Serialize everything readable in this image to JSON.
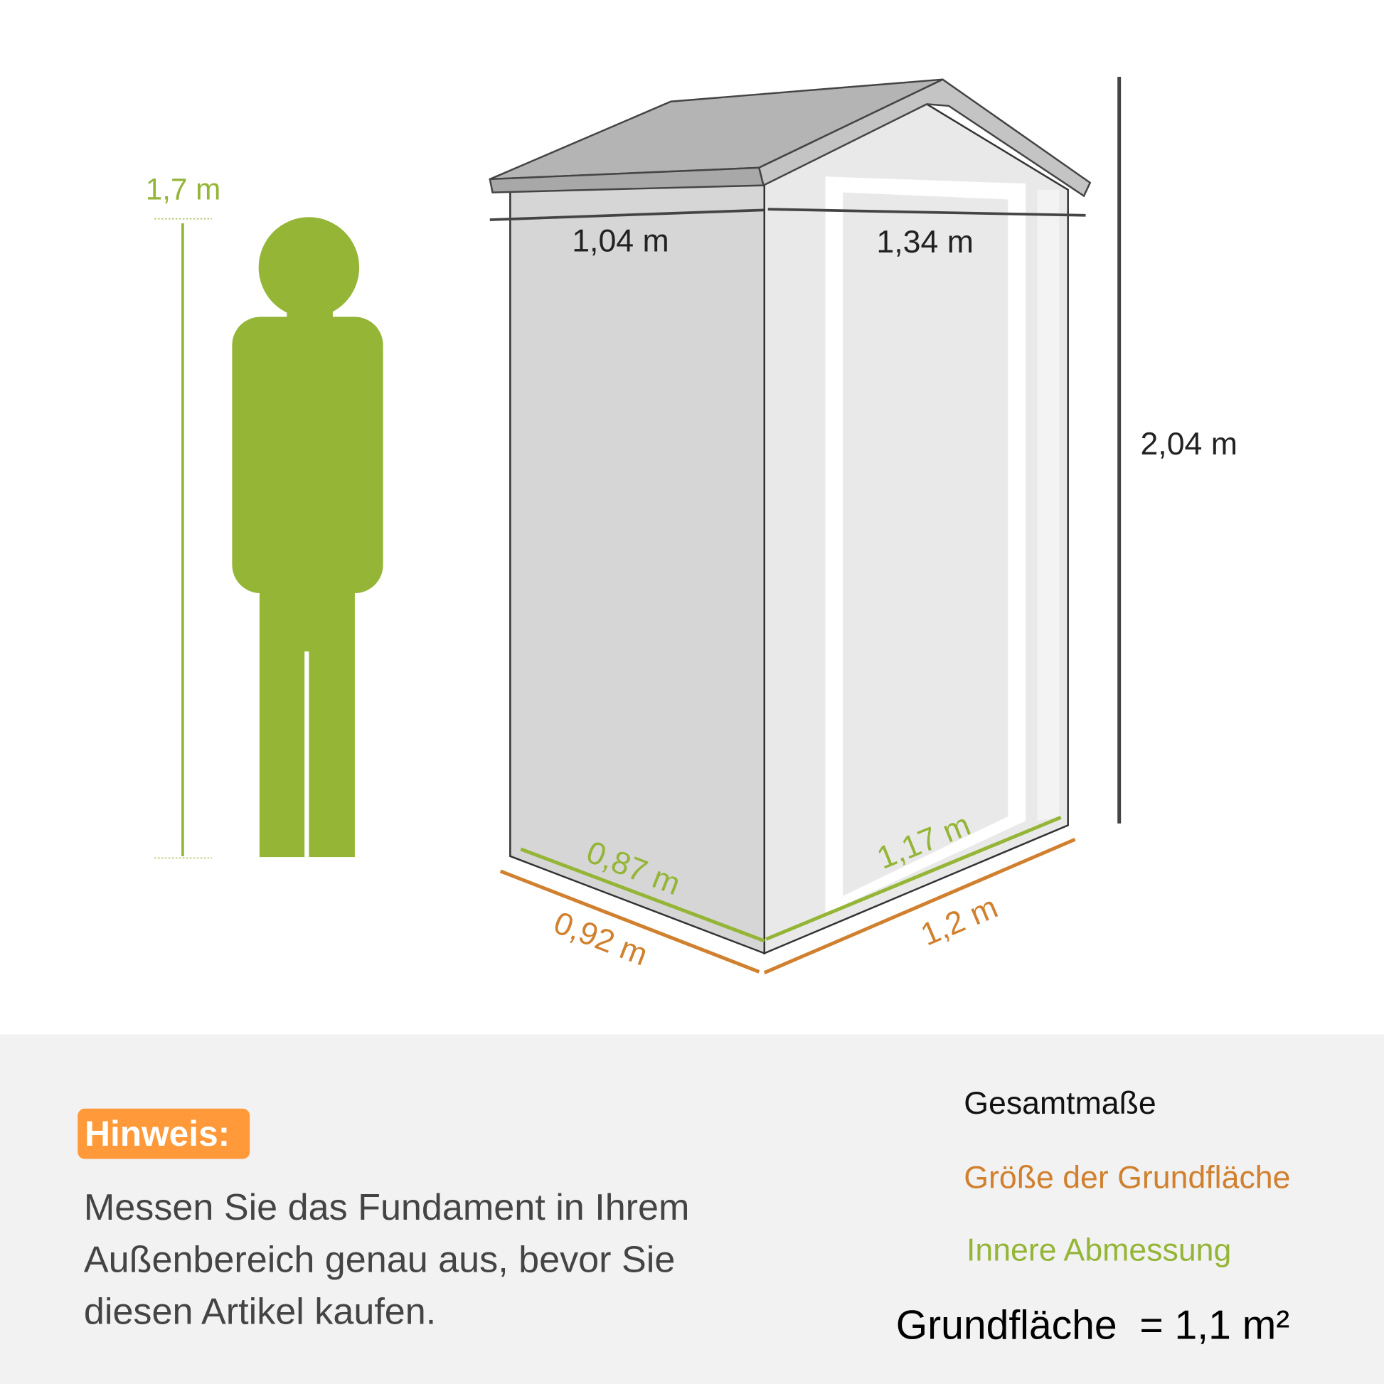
{
  "person": {
    "height_label": "1,7 m"
  },
  "shed": {
    "top_depth_label": "1,04 m",
    "top_width_label": "1,34 m",
    "height_label": "2,04 m",
    "inner_depth_label": "0,87 m",
    "inner_width_label": "1,17 m",
    "base_depth_label": "0,92 m",
    "base_width_label": "1,2 m"
  },
  "note": {
    "badge": "Hinweis:",
    "lines": [
      "Messen Sie das Fundament in Ihrem",
      "Außenbereich genau aus, bevor Sie",
      "diesen Artikel kaufen."
    ]
  },
  "legend": {
    "overall": "Gesamtmaße",
    "base": "Größe der Grundfläche",
    "inner": "Innere Abmessung",
    "area": "Grundfläche  = 1,1 m²"
  },
  "colors": {
    "green": "#94b536",
    "orange": "#d0802e",
    "badge": "#ff993a",
    "dark": "#333333"
  }
}
